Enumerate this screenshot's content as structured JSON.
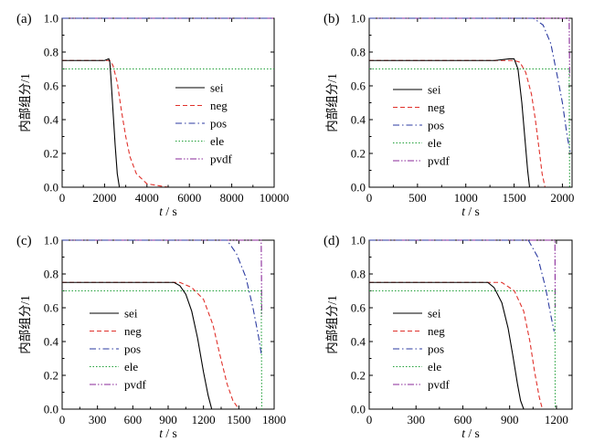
{
  "figure": {
    "ylabel": "内部组分/1",
    "xlabel_italic": "t",
    "xlabel_unit": " / s"
  },
  "chart_data": [
    {
      "type": "line",
      "panel_label": "(a)",
      "xlim": [
        0,
        10000
      ],
      "ylim": [
        0,
        1.0
      ],
      "xticks": [
        "0",
        "2000",
        "4000",
        "6000",
        "8000",
        "10000"
      ],
      "yticks": [
        "0.0",
        "0.2",
        "0.4",
        "0.6",
        "0.8",
        "1.0"
      ],
      "legend_position": "center-right",
      "series": [
        {
          "name": "sei",
          "color": "#000000",
          "dash": "solid",
          "points": [
            [
              0,
              0.75
            ],
            [
              2000,
              0.75
            ],
            [
              2200,
              0.76
            ],
            [
              2250,
              0.74
            ],
            [
              2300,
              0.65
            ],
            [
              2400,
              0.45
            ],
            [
              2500,
              0.25
            ],
            [
              2600,
              0.08
            ],
            [
              2700,
              0
            ],
            [
              10000,
              0
            ]
          ]
        },
        {
          "name": "neg",
          "color": "#e0312b",
          "dash": "dashed",
          "points": [
            [
              0,
              0.75
            ],
            [
              2000,
              0.75
            ],
            [
              2250,
              0.75
            ],
            [
              2400,
              0.72
            ],
            [
              2600,
              0.62
            ],
            [
              2800,
              0.45
            ],
            [
              3000,
              0.3
            ],
            [
              3200,
              0.18
            ],
            [
              3500,
              0.08
            ],
            [
              4000,
              0.02
            ],
            [
              5000,
              0
            ],
            [
              10000,
              0
            ]
          ]
        },
        {
          "name": "pos",
          "color": "#2b3aa0",
          "dash": "dashdot",
          "points": [
            [
              0,
              1.0
            ],
            [
              10000,
              1.0
            ]
          ]
        },
        {
          "name": "ele",
          "color": "#22a03a",
          "dash": "dotted",
          "points": [
            [
              0,
              0.7
            ],
            [
              10000,
              0.7
            ]
          ]
        },
        {
          "name": "pvdf",
          "color": "#8a2a9a",
          "dash": "dashdotdot",
          "points": [
            [
              0,
              1.0
            ],
            [
              10000,
              1.0
            ]
          ]
        }
      ]
    },
    {
      "type": "line",
      "panel_label": "(b)",
      "xlim": [
        0,
        2100
      ],
      "ylim": [
        0,
        1.0
      ],
      "xticks": [
        "0",
        "500",
        "1000",
        "1500",
        "2000"
      ],
      "yticks": [
        "0.0",
        "0.2",
        "0.4",
        "0.6",
        "0.8",
        "1.0"
      ],
      "legend_position": "bottom-center",
      "series": [
        {
          "name": "sei",
          "color": "#000000",
          "dash": "solid",
          "points": [
            [
              0,
              0.75
            ],
            [
              1300,
              0.75
            ],
            [
              1450,
              0.76
            ],
            [
              1500,
              0.76
            ],
            [
              1540,
              0.7
            ],
            [
              1580,
              0.5
            ],
            [
              1610,
              0.3
            ],
            [
              1640,
              0.1
            ],
            [
              1660,
              0
            ],
            [
              2080,
              0
            ]
          ]
        },
        {
          "name": "neg",
          "color": "#e0312b",
          "dash": "dashed",
          "points": [
            [
              0,
              0.75
            ],
            [
              1500,
              0.75
            ],
            [
              1560,
              0.74
            ],
            [
              1620,
              0.68
            ],
            [
              1680,
              0.55
            ],
            [
              1720,
              0.4
            ],
            [
              1760,
              0.22
            ],
            [
              1790,
              0.08
            ],
            [
              1820,
              0
            ],
            [
              2080,
              0
            ]
          ]
        },
        {
          "name": "pos",
          "color": "#2b3aa0",
          "dash": "dashdot",
          "points": [
            [
              0,
              1.0
            ],
            [
              1700,
              1.0
            ],
            [
              1800,
              0.96
            ],
            [
              1880,
              0.85
            ],
            [
              1950,
              0.65
            ],
            [
              2000,
              0.5
            ],
            [
              2050,
              0.3
            ],
            [
              2080,
              0.21
            ]
          ]
        },
        {
          "name": "ele",
          "color": "#22a03a",
          "dash": "dotted",
          "points": [
            [
              0,
              0.7
            ],
            [
              2070,
              0.7
            ],
            [
              2075,
              0.0
            ]
          ]
        },
        {
          "name": "pvdf",
          "color": "#8a2a9a",
          "dash": "dashdotdot",
          "points": [
            [
              0,
              1.0
            ],
            [
              2070,
              1.0
            ],
            [
              2075,
              0.65
            ]
          ]
        }
      ]
    },
    {
      "type": "line",
      "panel_label": "(c)",
      "xlim": [
        0,
        1800
      ],
      "ylim": [
        0,
        1.0
      ],
      "xticks": [
        "0",
        "300",
        "600",
        "900",
        "1200",
        "1500",
        "1800"
      ],
      "yticks": [
        "0.0",
        "0.2",
        "0.4",
        "0.6",
        "0.8",
        "1.0"
      ],
      "legend_position": "bottom-left",
      "series": [
        {
          "name": "sei",
          "color": "#000000",
          "dash": "solid",
          "points": [
            [
              0,
              0.75
            ],
            [
              950,
              0.75
            ],
            [
              1000,
              0.73
            ],
            [
              1050,
              0.68
            ],
            [
              1100,
              0.58
            ],
            [
              1150,
              0.42
            ],
            [
              1200,
              0.22
            ],
            [
              1240,
              0.08
            ],
            [
              1270,
              0
            ],
            [
              1680,
              0
            ]
          ]
        },
        {
          "name": "neg",
          "color": "#e0312b",
          "dash": "dashed",
          "points": [
            [
              0,
              0.75
            ],
            [
              1000,
              0.75
            ],
            [
              1100,
              0.72
            ],
            [
              1200,
              0.65
            ],
            [
              1280,
              0.5
            ],
            [
              1340,
              0.32
            ],
            [
              1400,
              0.15
            ],
            [
              1450,
              0.05
            ],
            [
              1500,
              0
            ],
            [
              1680,
              0
            ]
          ]
        },
        {
          "name": "pos",
          "color": "#2b3aa0",
          "dash": "dashdot",
          "points": [
            [
              0,
              1.0
            ],
            [
              1400,
              1.0
            ],
            [
              1480,
              0.92
            ],
            [
              1560,
              0.78
            ],
            [
              1620,
              0.6
            ],
            [
              1670,
              0.42
            ],
            [
              1690,
              0.33
            ]
          ]
        },
        {
          "name": "ele",
          "color": "#22a03a",
          "dash": "dotted",
          "points": [
            [
              0,
              0.7
            ],
            [
              1690,
              0.7
            ],
            [
              1695,
              0.0
            ]
          ]
        },
        {
          "name": "pvdf",
          "color": "#8a2a9a",
          "dash": "dashdotdot",
          "points": [
            [
              0,
              1.0
            ],
            [
              1690,
              1.0
            ],
            [
              1695,
              0.55
            ]
          ]
        }
      ]
    },
    {
      "type": "line",
      "panel_label": "(d)",
      "xlim": [
        0,
        1300
      ],
      "ylim": [
        0,
        1.0
      ],
      "xticks": [
        "0",
        "300",
        "600",
        "900",
        "1200"
      ],
      "yticks": [
        "0.0",
        "0.2",
        "0.4",
        "0.6",
        "0.8",
        "1.0"
      ],
      "legend_position": "bottom-left",
      "series": [
        {
          "name": "sei",
          "color": "#000000",
          "dash": "solid",
          "points": [
            [
              0,
              0.75
            ],
            [
              760,
              0.75
            ],
            [
              800,
              0.72
            ],
            [
              850,
              0.63
            ],
            [
              890,
              0.48
            ],
            [
              920,
              0.32
            ],
            [
              950,
              0.15
            ],
            [
              970,
              0.05
            ],
            [
              990,
              0
            ],
            [
              1180,
              0
            ]
          ]
        },
        {
          "name": "neg",
          "color": "#e0312b",
          "dash": "dashed",
          "points": [
            [
              0,
              0.75
            ],
            [
              850,
              0.75
            ],
            [
              930,
              0.7
            ],
            [
              990,
              0.58
            ],
            [
              1030,
              0.4
            ],
            [
              1060,
              0.22
            ],
            [
              1090,
              0.07
            ],
            [
              1110,
              0
            ],
            [
              1180,
              0
            ]
          ]
        },
        {
          "name": "pos",
          "color": "#2b3aa0",
          "dash": "dashdot",
          "points": [
            [
              0,
              1.0
            ],
            [
              1020,
              1.0
            ],
            [
              1080,
              0.9
            ],
            [
              1130,
              0.72
            ],
            [
              1165,
              0.55
            ],
            [
              1185,
              0.46
            ]
          ]
        },
        {
          "name": "ele",
          "color": "#22a03a",
          "dash": "dotted",
          "points": [
            [
              0,
              0.7
            ],
            [
              1190,
              0.7
            ],
            [
              1192,
              0.0
            ]
          ]
        },
        {
          "name": "pvdf",
          "color": "#8a2a9a",
          "dash": "dashdotdot",
          "points": [
            [
              0,
              1.0
            ],
            [
              1190,
              1.0
            ],
            [
              1192,
              0.6
            ]
          ]
        }
      ]
    }
  ]
}
